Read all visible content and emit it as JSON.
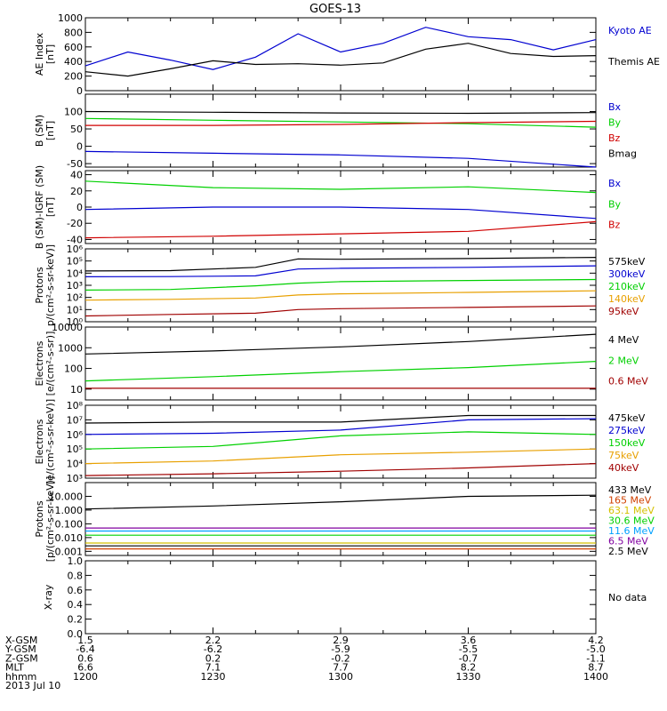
{
  "title": "GOES-13",
  "date": "2013 Jul 10",
  "colors": {
    "black": "#000000",
    "blue": "#0000d0",
    "green": "#00d000",
    "red": "#d00000",
    "orange": "#e8a000",
    "darkred": "#a00000",
    "cyan": "#00a0ff",
    "purple": "#8000a0",
    "yellow": "#d4c000"
  },
  "chart_data": [
    {
      "type": "line",
      "ylabel_lines": [
        "AE Index",
        "[nT]"
      ],
      "yscale": "linear",
      "ylim": [
        0,
        1000
      ],
      "ticks": [
        0,
        200,
        400,
        600,
        800,
        1000
      ],
      "tick_labels": [
        "0",
        "200",
        "400",
        "600",
        "800",
        "1000"
      ],
      "x": [
        1200,
        1210,
        1220,
        1230,
        1240,
        1250,
        1300,
        1310,
        1320,
        1330,
        1340,
        1350,
        1400
      ],
      "series": [
        {
          "name": "Kyoto AE",
          "color": "#0000d0",
          "values": [
            340,
            530,
            420,
            290,
            460,
            780,
            530,
            650,
            870,
            740,
            700,
            560,
            700
          ]
        },
        {
          "name": "Themis AE",
          "color": "#000000",
          "values": [
            260,
            200,
            300,
            410,
            360,
            370,
            350,
            380,
            570,
            650,
            510,
            470,
            480
          ]
        }
      ]
    },
    {
      "type": "line",
      "ylabel_lines": [
        "B (SM)",
        "[nT]"
      ],
      "yscale": "linear",
      "ylim": [
        -60,
        150
      ],
      "ticks": [
        -50,
        0,
        50,
        100
      ],
      "tick_labels": [
        "-50",
        "0",
        "50",
        "100"
      ],
      "x": [
        1200,
        1230,
        1300,
        1330,
        1400
      ],
      "series": [
        {
          "name": "Bx",
          "color": "#0000d0",
          "values": [
            -15,
            -20,
            -25,
            -35,
            -60
          ]
        },
        {
          "name": "By",
          "color": "#00d000",
          "values": [
            80,
            75,
            70,
            65,
            55
          ]
        },
        {
          "name": "Bz",
          "color": "#d00000",
          "values": [
            60,
            60,
            63,
            68,
            72
          ]
        },
        {
          "name": "Bmag",
          "color": "#000000",
          "values": [
            100,
            98,
            96,
            95,
            97
          ]
        }
      ]
    },
    {
      "type": "line",
      "ylabel_lines": [
        "B (SM)-IGRF (SM)",
        "[nT]"
      ],
      "yscale": "linear",
      "ylim": [
        -45,
        45
      ],
      "ticks": [
        -40,
        -20,
        0,
        20,
        40
      ],
      "tick_labels": [
        "-40",
        "-20",
        "0",
        "20",
        "40"
      ],
      "x": [
        1200,
        1230,
        1300,
        1330,
        1400
      ],
      "series": [
        {
          "name": "Bx",
          "color": "#0000d0",
          "values": [
            -3,
            0,
            0,
            -3,
            -14
          ]
        },
        {
          "name": "By",
          "color": "#00d000",
          "values": [
            32,
            24,
            22,
            25,
            18
          ]
        },
        {
          "name": "Bz",
          "color": "#d00000",
          "values": [
            -38,
            -36,
            -33,
            -30,
            -18
          ]
        }
      ]
    },
    {
      "type": "line",
      "ylabel_lines": [
        "Protons",
        "p/(cm²-s-sr-keV)]"
      ],
      "yscale": "log",
      "ylim": [
        1,
        1000000
      ],
      "ticks": [
        1,
        10,
        100,
        1000,
        10000,
        100000,
        1000000
      ],
      "tick_labels": [
        "10⁰",
        "10¹",
        "10²",
        "10³",
        "10⁴",
        "10⁵",
        "10⁶"
      ],
      "x": [
        1200,
        1220,
        1240,
        1250,
        1300,
        1330,
        1400
      ],
      "series": [
        {
          "name": "575keV",
          "color": "#000000",
          "values": [
            15000,
            16000,
            30000,
            150000,
            140000,
            160000,
            200000
          ]
        },
        {
          "name": "300keV",
          "color": "#0000d0",
          "values": [
            5000,
            5200,
            6000,
            22000,
            25000,
            30000,
            40000
          ]
        },
        {
          "name": "210keV",
          "color": "#00d000",
          "values": [
            400,
            450,
            900,
            1500,
            2000,
            2500,
            3000
          ]
        },
        {
          "name": "140keV",
          "color": "#e8a000",
          "values": [
            60,
            70,
            90,
            160,
            200,
            260,
            350
          ]
        },
        {
          "name": "95keV",
          "color": "#a00000",
          "values": [
            3,
            4,
            5,
            10,
            12,
            15,
            20
          ]
        }
      ]
    },
    {
      "type": "line",
      "ylabel_lines": [
        "Electrons",
        "[e/(cm²-s-sr)]"
      ],
      "yscale": "log",
      "ylim": [
        3,
        10000
      ],
      "ticks": [
        10,
        100,
        1000,
        10000
      ],
      "tick_labels": [
        "10",
        "100",
        "1000",
        "10000"
      ],
      "x": [
        1200,
        1230,
        1300,
        1330,
        1400
      ],
      "series": [
        {
          "name": "4 MeV",
          "color": "#000000",
          "values": [
            500,
            700,
            1100,
            2000,
            4500
          ]
        },
        {
          "name": "2 MeV",
          "color": "#00d000",
          "values": [
            25,
            40,
            70,
            110,
            220
          ]
        },
        {
          "name": "0.6 MeV",
          "color": "#a00000",
          "values": [
            11,
            11,
            11,
            11,
            11
          ]
        }
      ]
    },
    {
      "type": "line",
      "ylabel_lines": [
        "Electrons",
        "[e/(cm²-s-sr-keV)]"
      ],
      "yscale": "log",
      "ylim": [
        1000,
        100000000
      ],
      "ticks": [
        1000,
        10000,
        100000,
        1000000,
        10000000,
        100000000
      ],
      "tick_labels": [
        "10³",
        "10⁴",
        "10⁵",
        "10⁶",
        "10⁷",
        "10⁸"
      ],
      "x": [
        1200,
        1230,
        1300,
        1330,
        1400
      ],
      "series": [
        {
          "name": "475keV",
          "color": "#000000",
          "values": [
            6000000,
            7000000,
            7000000,
            20000000,
            20000000
          ]
        },
        {
          "name": "275keV",
          "color": "#0000d0",
          "values": [
            1000000,
            1200000,
            2000000,
            10000000,
            12000000
          ]
        },
        {
          "name": "150keV",
          "color": "#00d000",
          "values": [
            100000,
            150000,
            800000,
            1500000,
            1000000
          ]
        },
        {
          "name": "75keV",
          "color": "#e8a000",
          "values": [
            10000,
            15000,
            40000,
            60000,
            100000
          ]
        },
        {
          "name": "40keV",
          "color": "#a00000",
          "values": [
            1500,
            2000,
            3000,
            5000,
            10000
          ]
        }
      ]
    },
    {
      "type": "line",
      "ylabel_lines": [
        "Protons",
        "[p/(cm²-s-sr-keV)]"
      ],
      "yscale": "log",
      "ylim": [
        0.0005,
        100
      ],
      "ticks": [
        0.001,
        0.01,
        0.1,
        1,
        10
      ],
      "tick_labels": [
        "0.001",
        "0.010",
        "0.100",
        "1.000",
        "10.000"
      ],
      "x": [
        1200,
        1230,
        1300,
        1330,
        1400
      ],
      "series": [
        {
          "name": "433 MeV",
          "color": "#000000",
          "values": [
            1.2,
            2,
            4,
            10,
            12
          ]
        },
        {
          "name": "165 MeV",
          "color": "#d04000",
          "values": [
            0.0015,
            0.0015,
            0.0015,
            0.0015,
            0.0015
          ]
        },
        {
          "name": "63.1 MeV",
          "color": "#d4c000",
          "values": [
            0.004,
            0.004,
            0.004,
            0.004,
            0.004
          ]
        },
        {
          "name": "30.6 MeV",
          "color": "#00d000",
          "values": [
            0.015,
            0.015,
            0.015,
            0.015,
            0.015
          ]
        },
        {
          "name": "11.6 MeV",
          "color": "#00a0ff",
          "values": [
            0.03,
            0.03,
            0.03,
            0.03,
            0.03
          ]
        },
        {
          "name": "6.5 MeV",
          "color": "#8000a0",
          "values": [
            0.05,
            0.05,
            0.05,
            0.05,
            0.05
          ]
        },
        {
          "name": "2.5 MeV",
          "color": "#000000",
          "values": [
            0.0025,
            0.0025,
            0.0025,
            0.0025,
            0.0025
          ]
        }
      ]
    },
    {
      "type": "line",
      "ylabel_lines": [
        "X-ray"
      ],
      "yscale": "linear",
      "ylim": [
        0,
        1
      ],
      "ticks": [
        0,
        0.2,
        0.4,
        0.6,
        0.8,
        1
      ],
      "tick_labels": [
        "0.0",
        "0.2",
        "0.4",
        "0.6",
        "0.8",
        "1.0"
      ],
      "x": [],
      "series": [],
      "legend_text": "No data"
    }
  ],
  "xaxis": {
    "range": [
      1200,
      1400
    ],
    "tick_positions": [
      1200,
      1230,
      1300,
      1330,
      1400
    ],
    "rows": [
      {
        "label": "X-GSM",
        "values": [
          "1.5",
          "2.2",
          "2.9",
          "3.6",
          "4.2"
        ]
      },
      {
        "label": "Y-GSM",
        "values": [
          "-6.4",
          "-6.2",
          "-5.9",
          "-5.5",
          "-5.0"
        ]
      },
      {
        "label": "Z-GSM",
        "values": [
          "0.6",
          "0.2",
          "-0.2",
          "-0.7",
          "-1.1"
        ]
      },
      {
        "label": "MLT",
        "values": [
          "6.6",
          "7.1",
          "7.7",
          "8.2",
          "8.7"
        ]
      },
      {
        "label": "hhmm",
        "values": [
          "1200",
          "1230",
          "1300",
          "1330",
          "1400"
        ]
      }
    ]
  }
}
